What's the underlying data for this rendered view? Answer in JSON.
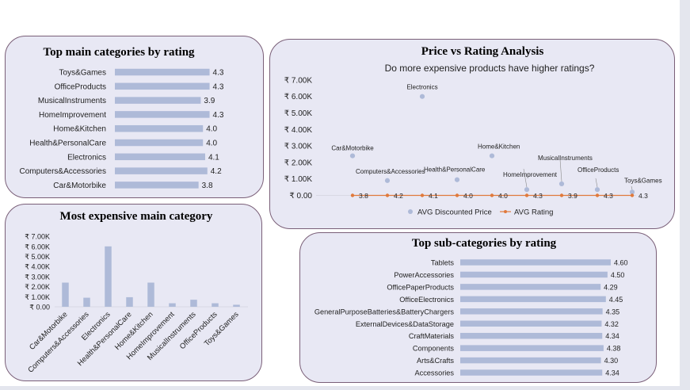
{
  "chart_data": [
    {
      "type": "bar",
      "orientation": "horizontal",
      "title": "Top main categories by rating",
      "categories": [
        "Toys&Games",
        "OfficeProducts",
        "MusicalInstruments",
        "HomeImprovement",
        "Home&Kitchen",
        "Health&PersonalCare",
        "Electronics",
        "Computers&Accessories",
        "Car&Motorbike"
      ],
      "values": [
        4.3,
        4.3,
        3.9,
        4.3,
        4.0,
        4.0,
        4.1,
        4.2,
        3.8
      ],
      "value_labels": [
        "4.3",
        "4.3",
        "3.9",
        "4.3",
        "4.0",
        "4.0",
        "4.1",
        "4.2",
        "3.8"
      ],
      "grid": false,
      "colors": {
        "bar": "#aebad8"
      }
    },
    {
      "type": "scatter",
      "title": "Price vs Rating Analysis",
      "subtitle": "Do more expensive products have higher ratings?",
      "yticks": [
        "₹ 0.00",
        "₹ 1.00K",
        "₹ 2.00K",
        "₹ 3.00K",
        "₹ 4.00K",
        "₹ 5.00K",
        "₹ 6.00K",
        "₹ 7.00K"
      ],
      "ylim": [
        0,
        7000
      ],
      "categories": [
        "Car&Motorbike",
        "Computers&Accessories",
        "Electronics",
        "Health&PersonalCare",
        "Home&Kitchen",
        "HomeImprovement",
        "MusicalInstruments",
        "OfficeProducts",
        "Toys&Games"
      ],
      "series": [
        {
          "name": "AVG Discounted Price",
          "values": [
            2400,
            900,
            6000,
            950,
            2400,
            350,
            700,
            350,
            200
          ]
        },
        {
          "name": "AVG Rating",
          "values": [
            3.8,
            4.2,
            4.1,
            4.0,
            4.0,
            4.3,
            3.9,
            4.3,
            4.3
          ],
          "labels": [
            "3.8",
            "4.2",
            "4.1",
            "4.0",
            "4.0",
            "4.3",
            "3.9",
            "4.3",
            "4.3"
          ]
        }
      ],
      "legend": [
        "AVG Discounted Price",
        "AVG Rating"
      ],
      "legend_position": "bottom",
      "grid": false,
      "colors": {
        "price": "#aebad8",
        "rating": "#e07a3c"
      }
    },
    {
      "type": "bar",
      "orientation": "vertical",
      "title": "Most expensive main category",
      "categories": [
        "Car&Motorbike",
        "Computers&Accessories",
        "Electronics",
        "Health&PersonalCare",
        "Home&Kitchen",
        "HomeImprovement",
        "MusicalInstruments",
        "OfficeProducts",
        "Toys&Games"
      ],
      "values": [
        2400,
        900,
        6000,
        950,
        2400,
        350,
        700,
        350,
        200
      ],
      "yticks": [
        "₹ 0.00",
        "₹ 1.00K",
        "₹ 2.00K",
        "₹ 3.00K",
        "₹ 4.00K",
        "₹ 5.00K",
        "₹ 6.00K",
        "₹ 7.00K"
      ],
      "ylim": [
        0,
        7000
      ],
      "grid": false,
      "colors": {
        "bar": "#aebad8"
      }
    },
    {
      "type": "bar",
      "orientation": "horizontal",
      "title": "Top sub-categories by rating",
      "categories": [
        "Tablets",
        "PowerAccessories",
        "OfficePaperProducts",
        "OfficeElectronics",
        "GeneralPurposeBatteries&BatteryChargers",
        "ExternalDevices&DataStorage",
        "CraftMaterials",
        "Components",
        "Arts&Crafts",
        "Accessories"
      ],
      "values": [
        4.6,
        4.5,
        4.29,
        4.45,
        4.35,
        4.32,
        4.34,
        4.38,
        4.3,
        4.34
      ],
      "value_labels": [
        "4.60",
        "4.50",
        "4.29",
        "4.45",
        "4.35",
        "4.32",
        "4.34",
        "4.38",
        "4.30",
        "4.34"
      ],
      "grid": false,
      "colors": {
        "bar": "#aebad8"
      }
    }
  ]
}
